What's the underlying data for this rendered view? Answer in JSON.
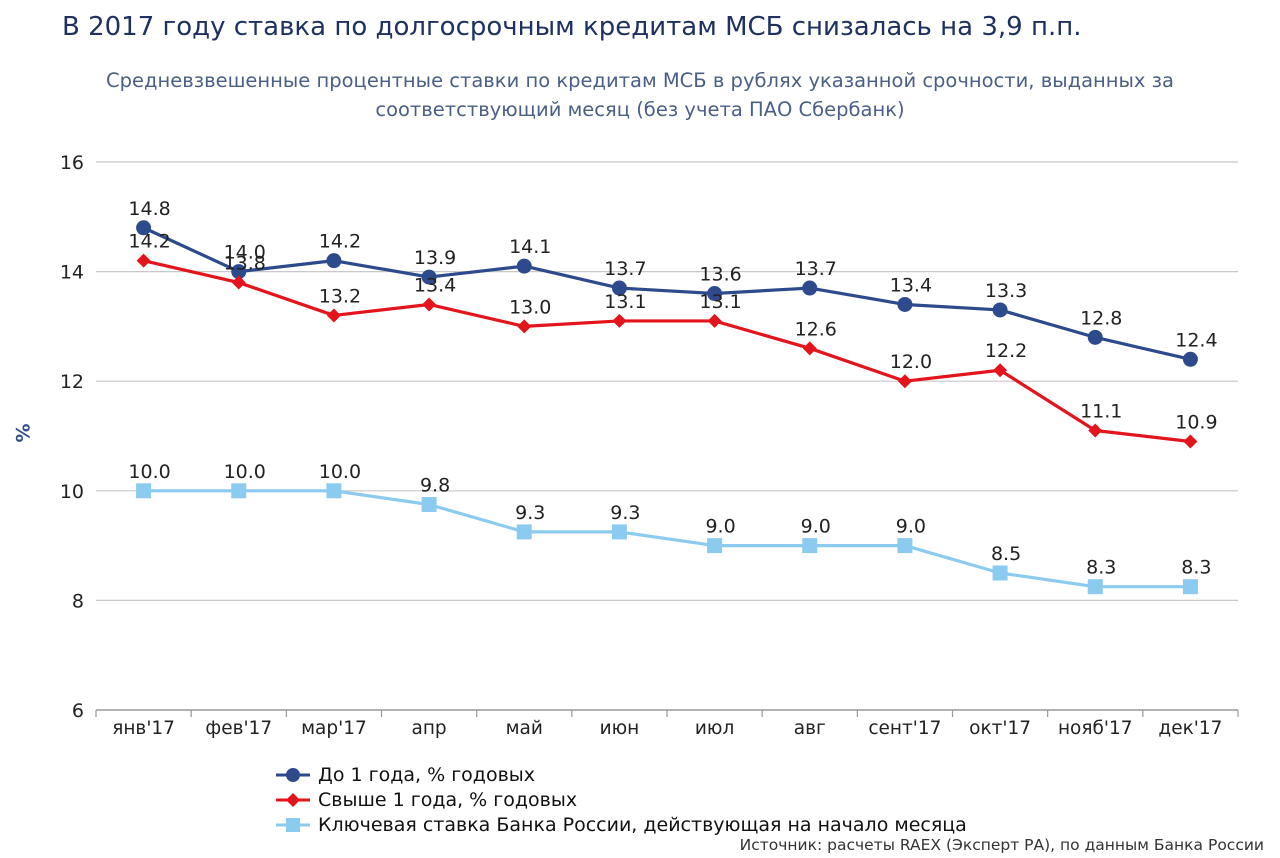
{
  "title": "В 2017 году ставка по долгосрочным кредитам МСБ снизалась на  3,9 п.п.",
  "subtitle_line1": "Средневзвешенные процентные ставки по кредитам МСБ в рублях указанной срочности, выданных за",
  "subtitle_line2": "соответствующий месяц (без учета ПАО Сбербанк)",
  "source": "Источник: расчеты RAEX (Эксперт РА), по данным Банка России",
  "chart_data": {
    "type": "line",
    "ylabel": "%",
    "ylim": [
      6,
      16
    ],
    "yticks": [
      6,
      8,
      10,
      12,
      14,
      16
    ],
    "grid": true,
    "legend_position": "bottom-left",
    "categories": [
      "янв'17",
      "фев'17",
      "мар'17",
      "апр",
      "май",
      "июн",
      "июл",
      "авг",
      "сент'17",
      "окт'17",
      "нояб'17",
      "дек'17"
    ],
    "series": [
      {
        "name": "До 1 года, % годовых",
        "marker": "circle",
        "color": "#2d4b8c",
        "values": [
          14.8,
          14.0,
          14.2,
          13.9,
          14.1,
          13.7,
          13.6,
          13.7,
          13.4,
          13.3,
          12.8,
          12.4
        ],
        "labels": [
          "14.8",
          "14.0",
          "14.2",
          "13.9",
          "14.1",
          "13.7",
          "13.6",
          "13.7",
          "13.4",
          "13.3",
          "12.8",
          "12.4"
        ]
      },
      {
        "name": "Свыше 1 года, % годовых",
        "marker": "diamond",
        "color": "#e3141b",
        "values": [
          14.2,
          13.8,
          13.2,
          13.4,
          13.0,
          13.1,
          13.1,
          12.6,
          12.0,
          12.2,
          11.1,
          10.9
        ],
        "labels": [
          "14.2",
          "13.8",
          "13.2",
          "13.4",
          "13.0",
          "13.1",
          "13.1",
          "12.6",
          "12.0",
          "12.2",
          "11.1",
          "10.9"
        ]
      },
      {
        "name": "Ключевая ставка Банка России, действующая на начало месяца",
        "marker": "square",
        "color": "#8ccbf0",
        "values": [
          10.0,
          10.0,
          10.0,
          9.75,
          9.25,
          9.25,
          9.0,
          9.0,
          9.0,
          8.5,
          8.25,
          8.25
        ],
        "labels": [
          "10.0",
          "10.0",
          "10.0",
          "9.8",
          "9.3",
          "9.3",
          "9.0",
          "9.0",
          "9.0",
          "8.5",
          "8.3",
          "8.3"
        ]
      }
    ]
  }
}
